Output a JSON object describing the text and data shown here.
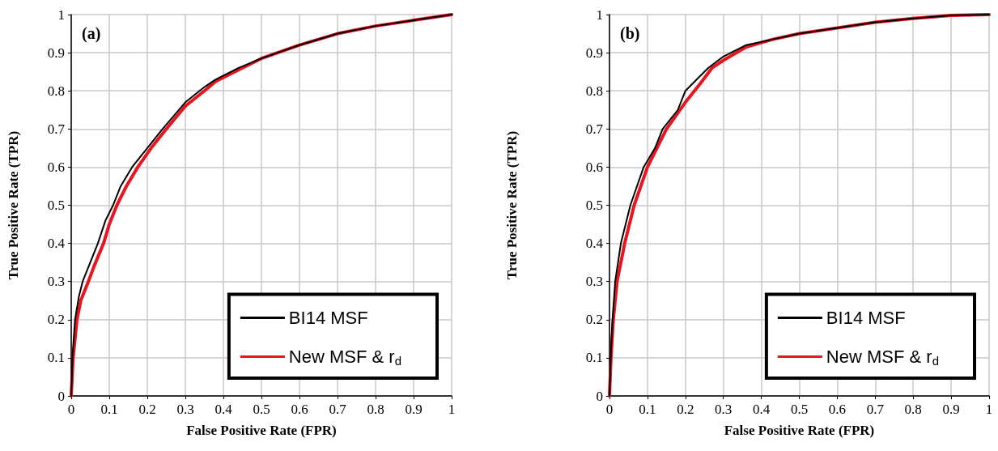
{
  "chart_data": [
    {
      "type": "line",
      "title": "(a)",
      "xlabel": "False Positive Rate (FPR)",
      "ylabel": "True Positive Rate (TPR)",
      "xlim": [
        0,
        1
      ],
      "ylim": [
        0,
        1
      ],
      "xticks": [
        0,
        0.1,
        0.2,
        0.3,
        0.4,
        0.5,
        0.6,
        0.7,
        0.8,
        0.9,
        1
      ],
      "yticks": [
        0,
        0.1,
        0.2,
        0.3,
        0.4,
        0.5,
        0.6,
        0.7,
        0.8,
        0.9,
        1
      ],
      "grid": true,
      "legend": "bottom right",
      "marker": "none",
      "line_style": "solid",
      "series": [
        {
          "name": "BI14 MSF",
          "color": "#000000",
          "x": [
            0,
            0.003,
            0.01,
            0.02,
            0.03,
            0.05,
            0.07,
            0.09,
            0.11,
            0.13,
            0.16,
            0.2,
            0.24,
            0.3,
            0.35,
            0.38,
            0.44,
            0.5,
            0.6,
            0.7,
            0.8,
            0.9,
            1
          ],
          "values": [
            0,
            0.1,
            0.2,
            0.26,
            0.3,
            0.35,
            0.4,
            0.46,
            0.5,
            0.55,
            0.6,
            0.65,
            0.7,
            0.77,
            0.81,
            0.83,
            0.86,
            0.885,
            0.92,
            0.95,
            0.97,
            0.985,
            1
          ]
        },
        {
          "name": "New MSF & r$_{d}$",
          "color": "#e8141e",
          "x": [
            0,
            0.005,
            0.015,
            0.025,
            0.045,
            0.06,
            0.085,
            0.1,
            0.12,
            0.145,
            0.175,
            0.21,
            0.25,
            0.3,
            0.35,
            0.38,
            0.44,
            0.5,
            0.6,
            0.7,
            0.8,
            0.9,
            1
          ],
          "values": [
            0,
            0.1,
            0.2,
            0.25,
            0.3,
            0.34,
            0.4,
            0.45,
            0.5,
            0.55,
            0.6,
            0.65,
            0.7,
            0.76,
            0.8,
            0.825,
            0.855,
            0.885,
            0.92,
            0.95,
            0.97,
            0.985,
            1
          ]
        }
      ]
    },
    {
      "type": "line",
      "title": "(b)",
      "xlabel": "False Positive Rate (FPR)",
      "ylabel": "True Positive Rate (TPR)",
      "xlim": [
        0,
        1
      ],
      "ylim": [
        0,
        1
      ],
      "xticks": [
        0,
        0.1,
        0.2,
        0.3,
        0.4,
        0.5,
        0.6,
        0.7,
        0.8,
        0.9,
        1
      ],
      "yticks": [
        0,
        0.1,
        0.2,
        0.3,
        0.4,
        0.5,
        0.6,
        0.7,
        0.8,
        0.9,
        1
      ],
      "grid": true,
      "legend": "bottom right",
      "marker": "none",
      "line_style": "solid",
      "series": [
        {
          "name": "BI14 MSF",
          "color": "#000000",
          "x": [
            0,
            0.003,
            0.008,
            0.015,
            0.03,
            0.055,
            0.09,
            0.12,
            0.14,
            0.18,
            0.2,
            0.23,
            0.26,
            0.3,
            0.36,
            0.43,
            0.5,
            0.6,
            0.7,
            0.8,
            0.9,
            1
          ],
          "values": [
            0,
            0.1,
            0.2,
            0.3,
            0.4,
            0.5,
            0.6,
            0.65,
            0.7,
            0.75,
            0.8,
            0.83,
            0.86,
            0.89,
            0.92,
            0.935,
            0.95,
            0.965,
            0.98,
            0.99,
            0.998,
            1
          ]
        },
        {
          "name": "New MSF & r$_{d}$",
          "color": "#e8141e",
          "x": [
            0,
            0.004,
            0.01,
            0.02,
            0.04,
            0.065,
            0.1,
            0.125,
            0.15,
            0.2,
            0.24,
            0.27,
            0.3,
            0.36,
            0.43,
            0.5,
            0.6,
            0.7,
            0.8,
            0.9,
            1
          ],
          "values": [
            0,
            0.1,
            0.2,
            0.3,
            0.4,
            0.5,
            0.6,
            0.65,
            0.7,
            0.77,
            0.82,
            0.86,
            0.88,
            0.915,
            0.935,
            0.95,
            0.965,
            0.98,
            0.99,
            0.998,
            1
          ]
        }
      ]
    }
  ]
}
